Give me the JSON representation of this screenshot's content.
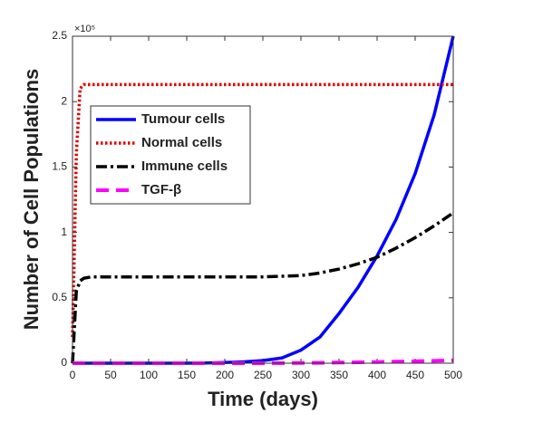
{
  "chart_data": {
    "type": "line",
    "xlabel": "Time (days)",
    "ylabel": "Number of Cell Populations",
    "y_multiplier": "×10⁵",
    "x": [
      0,
      5,
      10,
      15,
      25,
      50,
      75,
      100,
      125,
      150,
      175,
      200,
      225,
      250,
      275,
      300,
      325,
      350,
      375,
      400,
      425,
      450,
      475,
      500
    ],
    "series": [
      {
        "name": "Tumour cells",
        "color": "#0000ff",
        "linestyle": "solid",
        "values": [
          0,
          0,
          0,
          0,
          0,
          0,
          0,
          0,
          0,
          0,
          0.002,
          0.005,
          0.01,
          0.02,
          0.04,
          0.1,
          0.2,
          0.38,
          0.58,
          0.82,
          1.1,
          1.45,
          1.9,
          2.5
        ]
      },
      {
        "name": "Normal cells",
        "color": "#e00000",
        "linestyle": "dotted",
        "values": [
          0.2,
          1.6,
          2.1,
          2.13,
          2.13,
          2.13,
          2.13,
          2.13,
          2.13,
          2.13,
          2.13,
          2.13,
          2.13,
          2.13,
          2.13,
          2.13,
          2.13,
          2.13,
          2.13,
          2.13,
          2.13,
          2.13,
          2.13,
          2.13
        ]
      },
      {
        "name": "Immune cells",
        "color": "#000000",
        "linestyle": "dashdot",
        "values": [
          0,
          0.55,
          0.63,
          0.65,
          0.66,
          0.66,
          0.66,
          0.66,
          0.66,
          0.66,
          0.66,
          0.66,
          0.66,
          0.66,
          0.665,
          0.67,
          0.69,
          0.72,
          0.76,
          0.81,
          0.88,
          0.96,
          1.05,
          1.15
        ]
      },
      {
        "name": "TGF-β",
        "color": "#ff00ff",
        "linestyle": "dashed",
        "values": [
          0,
          0,
          0,
          0,
          0,
          0,
          0,
          0,
          0,
          0,
          0,
          0,
          0,
          0,
          0.001,
          0.002,
          0.003,
          0.005,
          0.007,
          0.009,
          0.012,
          0.015,
          0.018,
          0.022
        ]
      }
    ],
    "xlim": [
      0,
      500
    ],
    "xticks": [
      0,
      50,
      100,
      150,
      200,
      250,
      300,
      350,
      400,
      450,
      500
    ],
    "ylim": [
      0,
      2.5
    ],
    "yticks": [
      0,
      0.5,
      1,
      1.5,
      2,
      2.5
    ],
    "legend": "upper left"
  }
}
